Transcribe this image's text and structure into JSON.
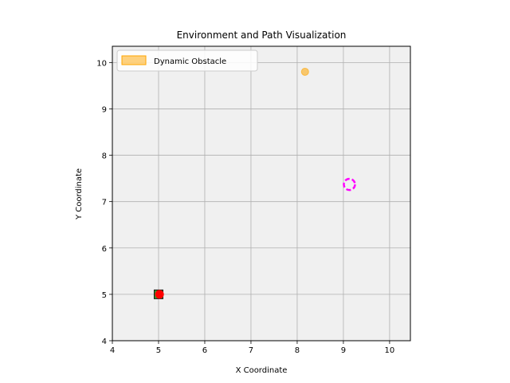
{
  "chart_data": {
    "type": "scatter",
    "title": "Environment and Path Visualization",
    "xlabel": "X Coordinate",
    "ylabel": "Y Coordinate",
    "xlim": [
      4,
      10.45
    ],
    "ylim": [
      4,
      10.35
    ],
    "xticks": [
      4,
      5,
      6,
      7,
      8,
      9,
      10
    ],
    "yticks": [
      4,
      5,
      6,
      7,
      8,
      9,
      10
    ],
    "grid": true,
    "background": "#f0f0f0",
    "legend": {
      "placement": "top-left",
      "entries": [
        {
          "label": "Dynamic Obstacle",
          "color": "#ffa500"
        }
      ]
    },
    "points": [
      {
        "kind": "dynamic-obstacle",
        "x": 8.17,
        "y": 9.8,
        "color": "#ffa500"
      },
      {
        "kind": "start-square",
        "x": 5.0,
        "y": 5.0,
        "color": "#2ca02c"
      },
      {
        "kind": "current-position",
        "x": 5.02,
        "y": 5.0,
        "color": "#ff0000"
      },
      {
        "kind": "goal-ring",
        "x": 9.13,
        "y": 7.37,
        "color": "#ff00ff"
      }
    ]
  }
}
